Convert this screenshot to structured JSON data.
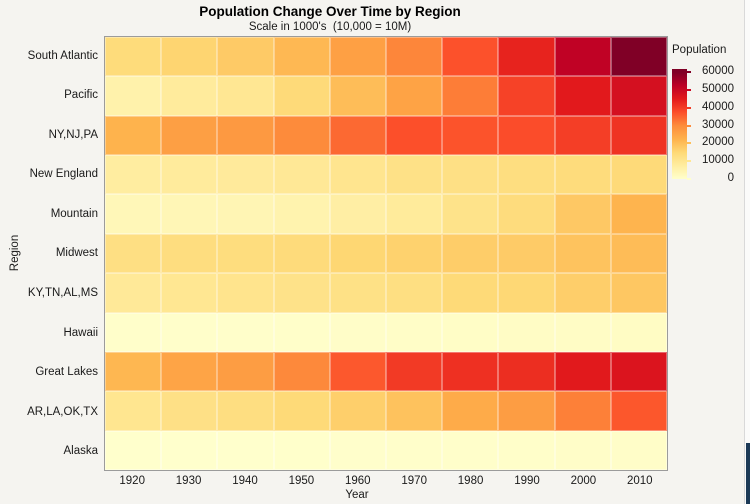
{
  "chart_data": {
    "type": "heatmap",
    "title": "Population Change Over Time by Region",
    "subtitle": "Scale in 1000's  (10,000 = 10M)",
    "xlabel": "Year",
    "ylabel": "Region",
    "x": [
      1920,
      1930,
      1940,
      1950,
      1960,
      1970,
      1980,
      1990,
      2000,
      2010
    ],
    "categories": [
      "South Atlantic",
      "Pacific",
      "NY,NJ,PA",
      "New England",
      "Mountain",
      "Midwest",
      "KY,TN,AL,MS",
      "Hawaii",
      "Great Lakes",
      "AR,LA,OK,TX",
      "Alaska"
    ],
    "series": [
      {
        "name": "South Atlantic",
        "values": [
          13990,
          15794,
          17823,
          21182,
          25972,
          30671,
          36959,
          43567,
          51769,
          59777
        ]
      },
      {
        "name": "Pacific",
        "values": [
          5566,
          8194,
          9733,
          14486,
          20339,
          25454,
          31800,
          39127,
          45026,
          47810
        ]
      },
      {
        "name": "NY,NJ,PA",
        "values": [
          22261,
          26261,
          27539,
          30164,
          34168,
          37199,
          36787,
          37602,
          39672,
          41217
        ]
      },
      {
        "name": "New England",
        "values": [
          7401,
          8166,
          8437,
          9314,
          10509,
          11842,
          12348,
          13207,
          13923,
          14445
        ]
      },
      {
        "name": "Mountain",
        "values": [
          3336,
          3702,
          4150,
          5075,
          6855,
          8282,
          11373,
          13659,
          18172,
          22065
        ]
      },
      {
        "name": "Midwest",
        "values": [
          12544,
          13297,
          13517,
          14061,
          15394,
          16319,
          17183,
          17660,
          19237,
          20505
        ]
      },
      {
        "name": "KY,TN,AL,MS",
        "values": [
          8893,
          9887,
          10778,
          11477,
          12050,
          12803,
          14666,
          15176,
          17023,
          18432
        ]
      },
      {
        "name": "Hawaii",
        "values": [
          256,
          368,
          423,
          500,
          633,
          770,
          965,
          1108,
          1212,
          1360
        ]
      },
      {
        "name": "Great Lakes",
        "values": [
          21476,
          25297,
          26626,
          30399,
          36225,
          40252,
          41682,
          42009,
          45155,
          46421
        ]
      },
      {
        "name": "AR,LA,OK,TX",
        "values": [
          10242,
          12177,
          13065,
          14538,
          16951,
          19321,
          23747,
          26703,
          31445,
          36347
        ]
      },
      {
        "name": "Alaska",
        "values": [
          55,
          59,
          73,
          129,
          226,
          301,
          402,
          550,
          627,
          710
        ]
      }
    ],
    "color_domain": [
      0,
      59777
    ],
    "colormap": [
      "#ffffcc",
      "#ffeda0",
      "#fed976",
      "#feb24c",
      "#fd8d3c",
      "#fc4e2a",
      "#e31a1c",
      "#bd0026",
      "#800026"
    ],
    "legend_title": "Population",
    "legend_ticks": [
      60000,
      50000,
      40000,
      30000,
      20000,
      10000,
      0
    ],
    "grid": false,
    "legend_position": "right",
    "background": "#f5f4f0"
  }
}
